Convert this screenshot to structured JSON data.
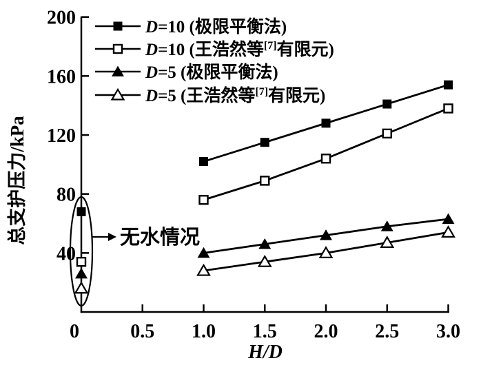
{
  "figure": {
    "ylabel": "总支护压力/kPa",
    "xlabel": "H/D",
    "colors": {
      "foreground": "#000000",
      "background": "#ffffff"
    }
  },
  "axes": {
    "x_ticks": [
      "0",
      "0.5",
      "1.0",
      "1.5",
      "2.0",
      "2.5",
      "3.0"
    ],
    "x_tick_values": [
      0,
      0.5,
      1.0,
      1.5,
      2.0,
      2.5,
      3.0
    ],
    "y_ticks": [
      "40",
      "80",
      "120",
      "160",
      "200"
    ],
    "y_tick_values": [
      40,
      80,
      120,
      160,
      200
    ],
    "xlim": [
      0,
      3.0
    ],
    "ylim": [
      0,
      200
    ]
  },
  "legend": {
    "items": [
      {
        "marker": "square-filled",
        "d": "D",
        "main": "=10 (极限平衡法)",
        "sup": "",
        "end": ""
      },
      {
        "marker": "square-open",
        "d": "D",
        "main": "=10 (王浩然等",
        "sup": "[7]",
        "end": "有限元)"
      },
      {
        "marker": "triangle-filled",
        "d": "D",
        "main": "=5 (极限平衡法)",
        "sup": "",
        "end": ""
      },
      {
        "marker": "triangle-open",
        "d": "D",
        "main": "=5 (王浩然等",
        "sup": "[7]",
        "end": "有限元)"
      }
    ]
  },
  "annotation": {
    "text": "无水情况"
  },
  "chart_data": {
    "type": "line",
    "title": "",
    "xlabel": "H/D",
    "ylabel": "总支护压力/kPa",
    "xlim": [
      0,
      3.0
    ],
    "ylim": [
      0,
      200
    ],
    "grid": false,
    "legend_position": "upper-left",
    "x": [
      1.0,
      1.5,
      2.0,
      2.5,
      3.0
    ],
    "series": [
      {
        "name": "D=10 (极限平衡法)",
        "marker": "square-filled",
        "values": [
          102,
          115,
          128,
          141,
          154
        ],
        "no_water_point": {
          "x": 0,
          "y": 68
        }
      },
      {
        "name": "D=10 (王浩然等[7]有限元)",
        "marker": "square-open",
        "values": [
          76,
          89,
          104,
          121,
          138
        ],
        "no_water_point": {
          "x": 0,
          "y": 34
        }
      },
      {
        "name": "D=5 (极限平衡法)",
        "marker": "triangle-filled",
        "values": [
          40,
          46,
          52,
          58,
          63
        ],
        "no_water_point": {
          "x": 0,
          "y": 26
        }
      },
      {
        "name": "D=5 (王浩然等[7]有限元)",
        "marker": "triangle-open",
        "values": [
          28,
          34,
          40,
          47,
          54
        ],
        "no_water_point": {
          "x": 0,
          "y": 16
        }
      }
    ],
    "annotations": [
      {
        "text": "无水情况",
        "meaning": "no-water condition points circled at H/D = 0",
        "ellipse": true,
        "arrow": true
      }
    ]
  }
}
